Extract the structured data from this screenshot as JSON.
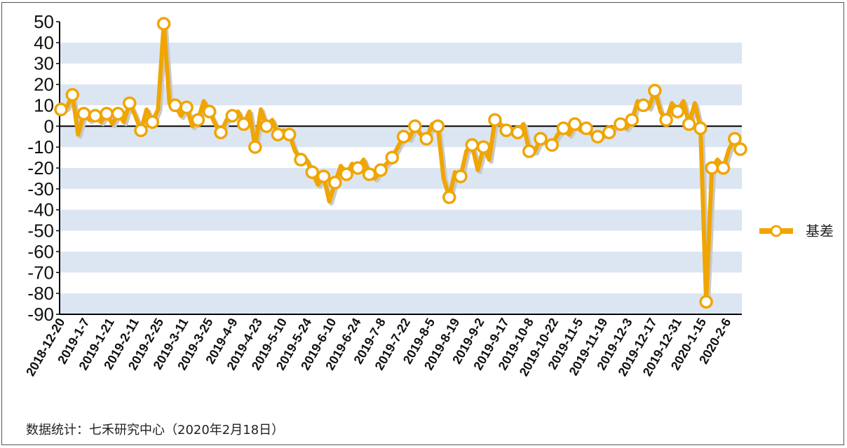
{
  "colors": {
    "series": "#f0a500",
    "band": "#dbe6f2",
    "marker_fill": "#ffffff",
    "axis": "#000000"
  },
  "chart_data": {
    "type": "line",
    "title": "",
    "xlabel": "",
    "ylabel": "",
    "ylim": [
      -90,
      50
    ],
    "yticks": [
      50,
      40,
      30,
      20,
      10,
      0,
      -10,
      -20,
      -30,
      -40,
      -50,
      -60,
      -70,
      -80,
      -90
    ],
    "grid": "alternating horizontal bands",
    "legend": "right",
    "x_tick_labels": [
      "2018-12-20",
      "2019-1-7",
      "2019-1-21",
      "2019-2-11",
      "2019-2-25",
      "2019-3-11",
      "2019-3-25",
      "2019-4-9",
      "2019-4-23",
      "2019-5-10",
      "2019-5-24",
      "2019-6-10",
      "2019-6-24",
      "2019-7-8",
      "2019-7-22",
      "2019-8-5",
      "2019-8-19",
      "2019-9-2",
      "2019-9-17",
      "2019-10-8",
      "2019-10-22",
      "2019-11-5",
      "2019-11-19",
      "2019-12-3",
      "2019-12-17",
      "2019-12-31",
      "2020-1-15",
      "2020-2-6"
    ],
    "series": [
      {
        "name": "基差",
        "values": [
          8,
          9,
          15,
          -4,
          6,
          3,
          5,
          2,
          6,
          1,
          6,
          2,
          11,
          5,
          -2,
          8,
          2,
          8,
          49,
          11,
          10,
          5,
          9,
          0,
          3,
          12,
          7,
          1,
          -3,
          3,
          5,
          7,
          1,
          7,
          -10,
          8,
          0,
          3,
          -4,
          -2,
          -4,
          -12,
          -16,
          -16,
          -22,
          -28,
          -24,
          -36,
          -27,
          -19,
          -23,
          -18,
          -20,
          -16,
          -23,
          -25,
          -21,
          -18,
          -15,
          -10,
          -5,
          -6,
          0,
          -4,
          -6,
          1,
          0,
          -25,
          -34,
          -22,
          -24,
          -12,
          -9,
          -21,
          -10,
          -16,
          3,
          1,
          -2,
          -3,
          -3,
          1,
          -12,
          -12,
          -6,
          -8,
          -9,
          -4,
          -1,
          -4,
          1,
          -2,
          -1,
          -4,
          -5,
          -4,
          -3,
          0,
          1,
          -1,
          3,
          12,
          10,
          9,
          17,
          7,
          3,
          11,
          7,
          12,
          1,
          11,
          -1,
          -84,
          -20,
          -16,
          -20,
          -11,
          -6,
          -11
        ]
      }
    ]
  },
  "legend": {
    "label": "基差"
  },
  "source_note": "数据统计：七禾研究中心（2020年2月18日）"
}
